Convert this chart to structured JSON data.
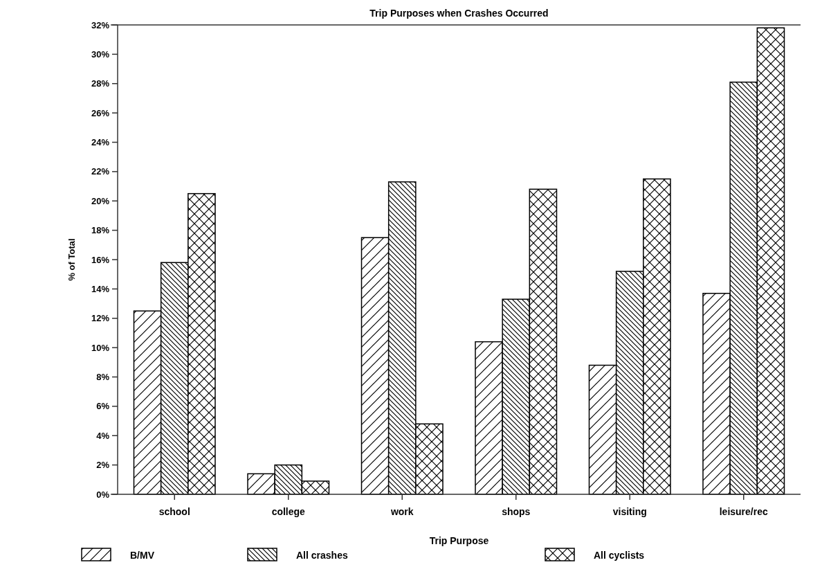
{
  "chart_data": {
    "type": "bar",
    "title": "Trip Purposes when Crashes Occurred",
    "xlabel": "Trip Purpose",
    "ylabel": "% of Total",
    "categories": [
      "school",
      "college",
      "work",
      "shops",
      "visiting",
      "leisure/rec"
    ],
    "series": [
      {
        "name": "B/MV",
        "color": "#000000",
        "values": [
          12.5,
          1.4,
          17.5,
          10.4,
          8.8,
          13.7
        ]
      },
      {
        "name": "All crashes",
        "color": "#000000",
        "values": [
          15.8,
          2.0,
          21.3,
          13.3,
          15.2,
          28.1
        ]
      },
      {
        "name": "All cyclists",
        "color": "#000000",
        "values": [
          20.5,
          0.9,
          4.8,
          20.8,
          21.5,
          31.8
        ]
      }
    ],
    "ylim": [
      0,
      32
    ],
    "yticks": [
      {
        "value": 0,
        "label": "0%"
      },
      {
        "value": 2,
        "label": "2%"
      },
      {
        "value": 4,
        "label": "4%"
      },
      {
        "value": 6,
        "label": "6%"
      },
      {
        "value": 8,
        "label": "8%"
      },
      {
        "value": 10,
        "label": "10%"
      },
      {
        "value": 12,
        "label": "12%"
      },
      {
        "value": 14,
        "label": "14%"
      },
      {
        "value": 16,
        "label": "16%"
      },
      {
        "value": 18,
        "label": "18%"
      },
      {
        "value": 20,
        "label": "20%"
      },
      {
        "value": 22,
        "label": "22%"
      },
      {
        "value": 24,
        "label": "24%"
      },
      {
        "value": 26,
        "label": "26%"
      },
      {
        "value": 28,
        "label": "28%"
      },
      {
        "value": 30,
        "label": "30%"
      },
      {
        "value": 32,
        "label": "32%"
      }
    ],
    "grid": false,
    "legend": "bottom"
  }
}
